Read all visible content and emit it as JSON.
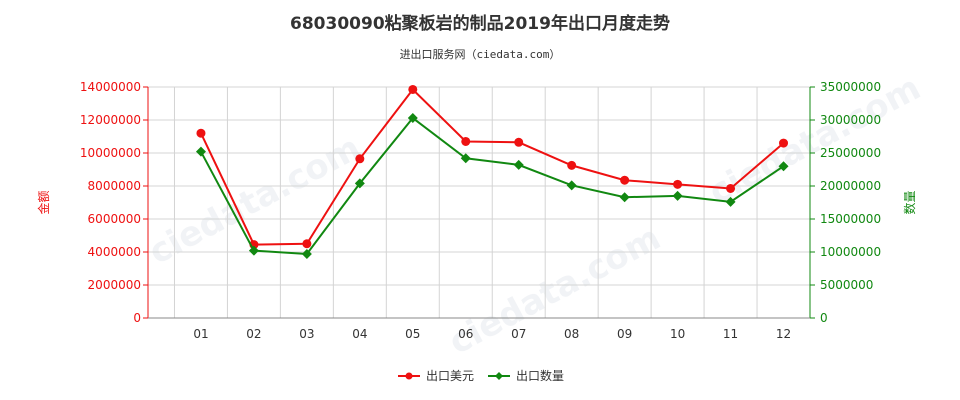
{
  "chart_data": {
    "type": "line",
    "title": "68030090粘聚板岩的制品2019年出口月度走势",
    "subtitle": "进出口服务网（ciedata.com）",
    "categories": [
      "01",
      "02",
      "03",
      "04",
      "05",
      "06",
      "07",
      "08",
      "09",
      "10",
      "11",
      "12"
    ],
    "y_left": {
      "label": "金额",
      "range": [
        0,
        14000000
      ],
      "ticks": [
        "0",
        "2000000",
        "4000000",
        "6000000",
        "8000000",
        "10000000",
        "12000000",
        "14000000"
      ]
    },
    "y_right": {
      "label": "数量",
      "range": [
        0,
        35000000
      ],
      "ticks": [
        "0",
        "5000000",
        "10000000",
        "15000000",
        "20000000",
        "25000000",
        "30000000",
        "35000000"
      ]
    },
    "series": [
      {
        "name": "出口美元",
        "axis": "left",
        "color": "#ee1111",
        "marker": "circle",
        "values": [
          11200000,
          4450000,
          4500000,
          9650000,
          13850000,
          10700000,
          10650000,
          9250000,
          8350000,
          8100000,
          7850000,
          10600000
        ]
      },
      {
        "name": "出口数量",
        "axis": "right",
        "color": "#118811",
        "marker": "diamond",
        "values": [
          25200000,
          10200000,
          9700000,
          20400000,
          30300000,
          24200000,
          23200000,
          20100000,
          18300000,
          18500000,
          17600000,
          23000000
        ]
      }
    ],
    "grid": true,
    "legend_position": "bottom-center",
    "left_axis_color": "#ee1111",
    "right_axis_color": "#118811"
  }
}
